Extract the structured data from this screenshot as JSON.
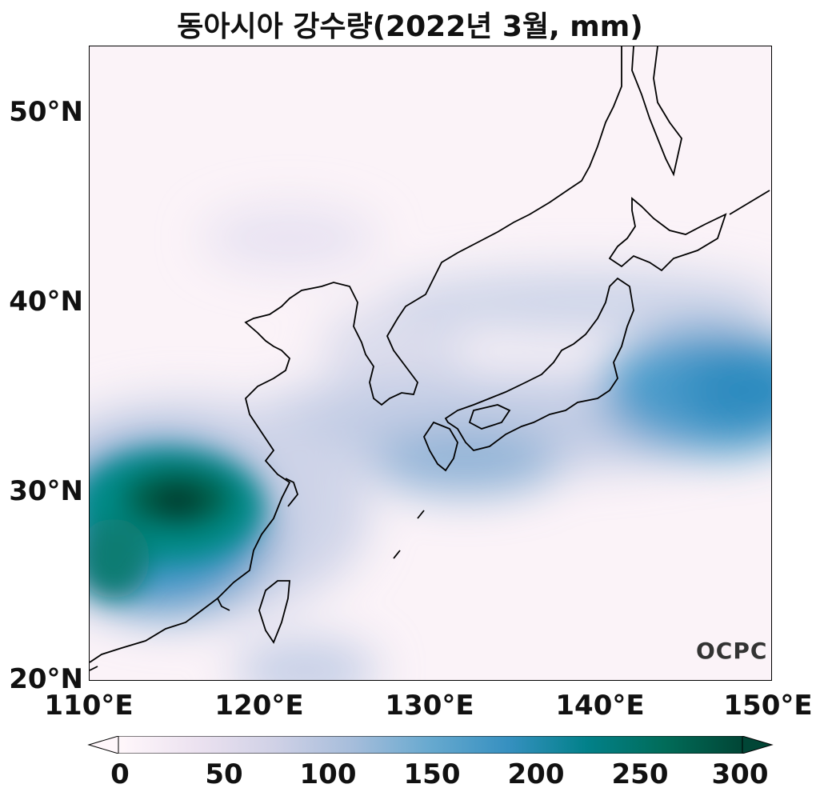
{
  "title": "동아시아 강수량(2022년 3월, mm)",
  "logo": "OCPC",
  "map": {
    "type": "precipitation-heatmap",
    "region": "East Asia",
    "lon_range": [
      110,
      150
    ],
    "lat_range": [
      20,
      53
    ],
    "colormap": "PuBuGn",
    "y_ticks": [
      "50°N",
      "40°N",
      "30°N",
      "20°N"
    ],
    "x_ticks": [
      "110°E",
      "120°E",
      "130°E",
      "140°E",
      "150°E"
    ]
  },
  "colorbar": {
    "min": 0,
    "max": 300,
    "extend": "both",
    "tick_labels": [
      "0",
      "50",
      "100",
      "150",
      "200",
      "250",
      "300"
    ],
    "colors": [
      "#fff7fb",
      "#ece2f0",
      "#d0d1e6",
      "#a6bddb",
      "#67a9cf",
      "#3690c0",
      "#02818a",
      "#016c59",
      "#014636"
    ]
  }
}
